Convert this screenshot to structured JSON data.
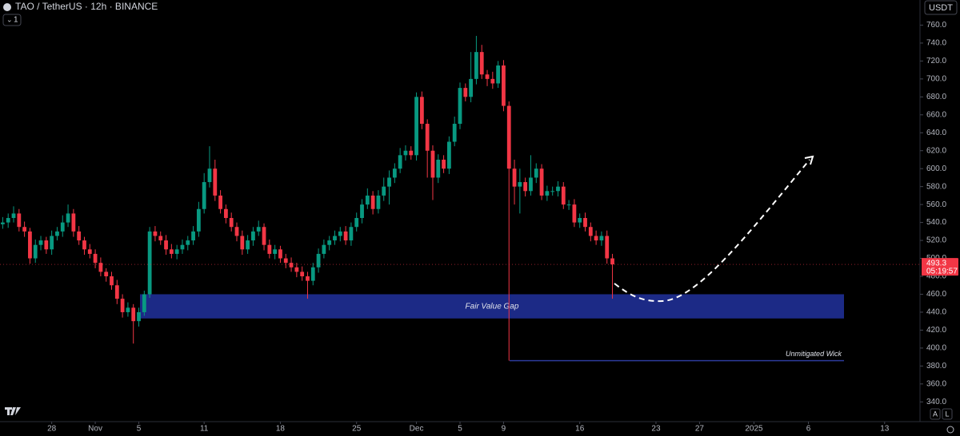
{
  "chart_data": {
    "type": "candlestick",
    "title": "TAO / TetherUS · 12h · BINANCE",
    "currency": "USDT",
    "interval_count": "1",
    "open": [
      538,
      540,
      545,
      550,
      535,
      530,
      500,
      515,
      520,
      510,
      525,
      530,
      540,
      550,
      530,
      520,
      510,
      505,
      495,
      485,
      480,
      470,
      455,
      440,
      445,
      430,
      440,
      460,
      530,
      525,
      520,
      510,
      505,
      510,
      515,
      520,
      530,
      555,
      585,
      600,
      570,
      555,
      545,
      535,
      525,
      510,
      520,
      530,
      535,
      515,
      505,
      510,
      500,
      495,
      490,
      485,
      480,
      475,
      490,
      505,
      515,
      520,
      525,
      530,
      520,
      535,
      545,
      560,
      570,
      555,
      570,
      580,
      590,
      600,
      615,
      620,
      615,
      680,
      650,
      620,
      590,
      610,
      600,
      630,
      650,
      690,
      680,
      700,
      730,
      705,
      700,
      695,
      715,
      670,
      600,
      580,
      585,
      575,
      590,
      600,
      570,
      575,
      575,
      580,
      560,
      560,
      540,
      545,
      535,
      525,
      520,
      525,
      500
    ],
    "high": [
      546,
      550,
      558,
      555,
      541,
      534,
      521,
      525,
      524,
      531,
      535,
      548,
      560,
      555,
      536,
      524,
      516,
      510,
      501,
      489,
      485,
      476,
      460,
      451,
      449,
      445,
      464,
      535,
      536,
      530,
      526,
      516,
      515,
      521,
      525,
      536,
      563,
      595,
      625,
      610,
      576,
      560,
      551,
      540,
      531,
      526,
      535,
      542,
      539,
      521,
      515,
      514,
      505,
      501,
      495,
      491,
      485,
      495,
      511,
      521,
      525,
      531,
      535,
      536,
      540,
      551,
      566,
      578,
      575,
      576,
      590,
      598,
      606,
      623,
      626,
      625,
      685,
      686,
      655,
      626,
      616,
      615,
      636,
      658,
      696,
      695,
      730,
      748,
      738,
      710,
      708,
      720,
      721,
      675,
      610,
      600,
      590,
      615,
      606,
      605,
      581,
      580,
      586,
      585,
      565,
      566,
      550,
      551,
      540,
      531,
      530,
      531,
      505
    ],
    "low": [
      533,
      534,
      540,
      530,
      524,
      494,
      495,
      509,
      505,
      504,
      520,
      524,
      535,
      524,
      515,
      504,
      500,
      489,
      480,
      474,
      465,
      449,
      434,
      435,
      405,
      424,
      436,
      456,
      519,
      515,
      504,
      500,
      499,
      505,
      509,
      515,
      524,
      550,
      579,
      564,
      550,
      539,
      530,
      519,
      504,
      505,
      514,
      525,
      509,
      500,
      499,
      495,
      489,
      485,
      479,
      475,
      455,
      470,
      484,
      500,
      509,
      515,
      519,
      515,
      514,
      530,
      539,
      555,
      549,
      550,
      564,
      560,
      584,
      595,
      609,
      610,
      609,
      644,
      590,
      565,
      584,
      595,
      594,
      625,
      644,
      675,
      674,
      694,
      700,
      692,
      689,
      690,
      664,
      386,
      560,
      550,
      569,
      570,
      584,
      565,
      564,
      570,
      569,
      555,
      554,
      535,
      534,
      530,
      519,
      515,
      514,
      494,
      455
    ],
    "close": [
      540,
      545,
      550,
      535,
      530,
      500,
      515,
      520,
      510,
      525,
      530,
      540,
      550,
      530,
      520,
      510,
      505,
      495,
      485,
      480,
      470,
      455,
      440,
      445,
      430,
      440,
      460,
      530,
      525,
      520,
      510,
      505,
      510,
      515,
      520,
      530,
      555,
      585,
      600,
      570,
      555,
      545,
      535,
      525,
      510,
      520,
      530,
      535,
      515,
      505,
      510,
      500,
      495,
      490,
      485,
      480,
      475,
      490,
      505,
      515,
      520,
      525,
      530,
      520,
      535,
      545,
      560,
      570,
      555,
      570,
      580,
      590,
      600,
      615,
      620,
      615,
      680,
      650,
      620,
      590,
      610,
      600,
      630,
      650,
      690,
      680,
      700,
      730,
      705,
      700,
      695,
      715,
      670,
      600,
      580,
      585,
      575,
      590,
      600,
      570,
      575,
      575,
      580,
      560,
      560,
      540,
      545,
      535,
      525,
      520,
      525,
      500,
      493.3
    ],
    "up_color": "#089981",
    "down_color": "#f23645",
    "ylim": [
      318,
      788
    ],
    "yticks": [
      {
        "value": 340,
        "label": "340.0"
      },
      {
        "value": 360,
        "label": "360.0"
      },
      {
        "value": 380,
        "label": "380.0"
      },
      {
        "value": 400,
        "label": "400.0"
      },
      {
        "value": 420,
        "label": "420.0"
      },
      {
        "value": 440,
        "label": "440.0"
      },
      {
        "value": 460,
        "label": "460.0"
      },
      {
        "value": 480,
        "label": "480.0"
      },
      {
        "value": 500,
        "label": "500.0"
      },
      {
        "value": 520,
        "label": "520.0"
      },
      {
        "value": 540,
        "label": "540.0"
      },
      {
        "value": 560,
        "label": "560.0"
      },
      {
        "value": 580,
        "label": "580.0"
      },
      {
        "value": 600,
        "label": "600.0"
      },
      {
        "value": 620,
        "label": "620.0"
      },
      {
        "value": 640,
        "label": "640.0"
      },
      {
        "value": 660,
        "label": "660.0"
      },
      {
        "value": 680,
        "label": "680.0"
      },
      {
        "value": 700,
        "label": "700.0"
      },
      {
        "value": 720,
        "label": "720.0"
      },
      {
        "value": 740,
        "label": "740.0"
      },
      {
        "value": 760,
        "label": "760.0"
      }
    ],
    "xlim": [
      -0.5,
      168.5
    ],
    "xticks": [
      {
        "value": 9,
        "label": "28"
      },
      {
        "value": 17,
        "label": "Nov"
      },
      {
        "value": 25,
        "label": "5"
      },
      {
        "value": 37,
        "label": "11"
      },
      {
        "value": 51,
        "label": "18"
      },
      {
        "value": 65,
        "label": "25"
      },
      {
        "value": 76,
        "label": "Dec"
      },
      {
        "value": 84,
        "label": "5"
      },
      {
        "value": 92,
        "label": "9"
      },
      {
        "value": 106,
        "label": "16"
      },
      {
        "value": 120,
        "label": "23"
      },
      {
        "value": 128,
        "label": "27"
      },
      {
        "value": 138,
        "label": "2025"
      },
      {
        "value": 148,
        "label": "6"
      },
      {
        "value": 162,
        "label": "13"
      }
    ],
    "zone": {
      "label": "Fair Value Gap",
      "low": 433,
      "high": 460,
      "color": "#1c2a86"
    },
    "level": {
      "label": "Unmitigated Wick",
      "value": 386,
      "color": "#2c3a9a"
    },
    "last_price": 493.3,
    "countdown": "05:19:57",
    "controls": [
      "A",
      "L"
    ]
  }
}
